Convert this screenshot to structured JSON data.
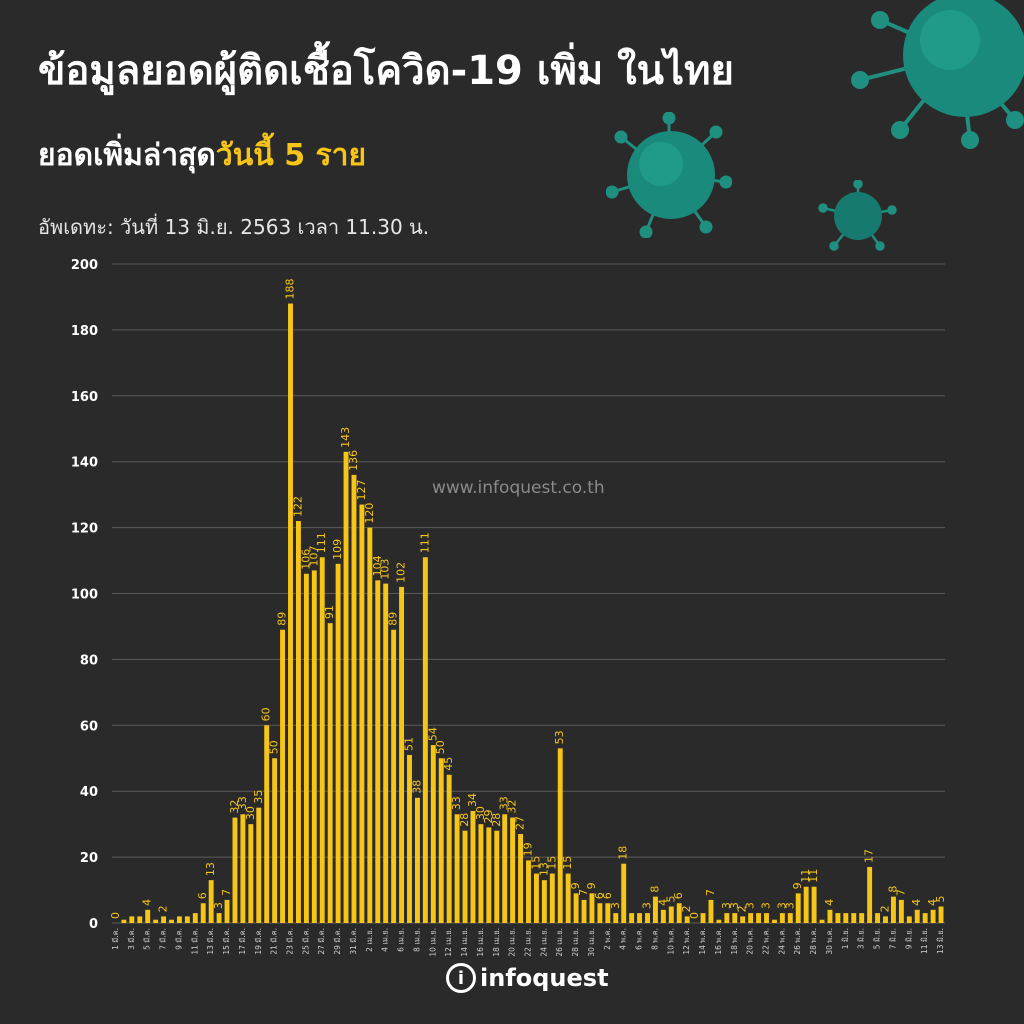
{
  "header": {
    "title": "ข้อมูลยอดผู้ติดเชื้อโควิด-19 เพิ่ม ในไทย",
    "subtitle_prefix": "ยอดเพิ่มล่าสุด",
    "subtitle_highlight": "วันนี้ 5 ราย",
    "update": "อัพเดทะ: วันที่ 13 มิ.ย. 2563 เวลา 11.30 น."
  },
  "watermark": "www.infoquest.co.th",
  "logo": {
    "mark": "i",
    "text": "infoquest"
  },
  "colors": {
    "background": "#2b2a2a",
    "bar": "#f5c518",
    "label": "#f5c518",
    "grid": "#5a5a5a",
    "virus": "#1f9a8a"
  },
  "chart_data": {
    "type": "bar",
    "ylim": [
      0,
      200
    ],
    "yticks": [
      0,
      20,
      40,
      60,
      80,
      100,
      120,
      140,
      160,
      180,
      200
    ],
    "grid": true,
    "values": [
      0,
      1,
      2,
      2,
      4,
      1,
      2,
      1,
      2,
      2,
      3,
      6,
      13,
      3,
      7,
      32,
      33,
      30,
      35,
      60,
      50,
      89,
      188,
      122,
      106,
      107,
      111,
      91,
      109,
      143,
      136,
      127,
      120,
      104,
      103,
      89,
      102,
      51,
      38,
      111,
      54,
      50,
      45,
      33,
      28,
      34,
      30,
      29,
      28,
      33,
      32,
      27,
      19,
      15,
      13,
      15,
      53,
      15,
      9,
      7,
      9,
      6,
      6,
      3,
      18,
      3,
      3,
      3,
      8,
      4,
      5,
      6,
      2,
      0,
      3,
      7,
      1,
      3,
      3,
      2,
      3,
      3,
      3,
      1,
      3,
      3,
      9,
      11,
      11,
      1,
      4,
      3,
      3,
      3,
      3,
      17,
      3,
      2,
      8,
      7,
      2,
      4,
      3,
      4,
      5
    ],
    "value_labels": {
      "0": "0",
      "4": "4",
      "6": "2",
      "11": "6",
      "12": "13",
      "13": "3",
      "14": "7",
      "15": "32",
      "16": "33",
      "17": "30",
      "18": "35",
      "19": "60",
      "20": "50",
      "21": "89",
      "22": "188",
      "23": "122",
      "24": "106",
      "25": "107",
      "26": "111",
      "27": "91",
      "28": "109",
      "29": "143",
      "30": "136",
      "31": "127",
      "32": "120",
      "33": "104",
      "34": "103",
      "35": "89",
      "36": "102",
      "37": "51",
      "38": "38",
      "39": "111",
      "40": "54",
      "41": "50",
      "42": "45",
      "43": "33",
      "44": "28",
      "45": "34",
      "46": "30",
      "47": "29",
      "48": "28",
      "49": "33",
      "50": "32",
      "51": "27",
      "52": "19",
      "53": "15",
      "54": "13",
      "55": "15",
      "56": "53",
      "57": "15",
      "58": "9",
      "59": "7",
      "60": "9",
      "61": "6",
      "62": "6",
      "63": "3",
      "64": "18",
      "67": "3",
      "68": "8",
      "69": "4",
      "70": "5",
      "71": "6",
      "72": "2",
      "73": "0",
      "75": "7",
      "77": "3",
      "78": "3",
      "79": "2",
      "80": "3",
      "82": "3",
      "84": "3",
      "85": "3",
      "86": "9",
      "87": "11",
      "88": "11",
      "90": "4",
      "95": "17",
      "97": "2",
      "98": "8",
      "99": "7",
      "101": "4",
      "103": "4",
      "104": "5"
    },
    "x_tick_labels": [
      "1 มี.ค.",
      "3 มี.ค.",
      "5 มี.ค.",
      "7 มี.ค.",
      "9 มี.ค.",
      "11 มี.ค.",
      "13 มี.ค.",
      "15 มี.ค.",
      "17 มี.ค.",
      "19 มี.ค.",
      "21 มี.ค.",
      "23 มี.ค.",
      "25 มี.ค.",
      "27 มี.ค.",
      "29 มี.ค.",
      "31 มี.ค.",
      "2 เม.ย.",
      "4 เม.ย.",
      "6 เม.ย.",
      "8 เม.ย.",
      "10 เม.ย.",
      "12 เม.ย.",
      "14 เม.ย.",
      "16 เม.ย.",
      "18 เม.ย.",
      "20 เม.ย.",
      "22 เม.ย.",
      "24 เม.ย.",
      "26 เม.ย.",
      "28 เม.ย.",
      "30 เม.ย.",
      "2 พ.ค.",
      "4 พ.ค.",
      "6 พ.ค.",
      "8 พ.ค.",
      "10 พ.ค.",
      "12 พ.ค.",
      "14 พ.ค.",
      "16 พ.ค.",
      "18 พ.ค.",
      "20 พ.ค.",
      "22 พ.ค.",
      "24 พ.ค.",
      "26 พ.ค.",
      "28 พ.ค.",
      "30 พ.ค.",
      "1 มิ.ย.",
      "3 มิ.ย.",
      "5 มิ.ย.",
      "7 มิ.ย.",
      "9 มิ.ย.",
      "11 มิ.ย.",
      "13 มิ.ย."
    ]
  }
}
